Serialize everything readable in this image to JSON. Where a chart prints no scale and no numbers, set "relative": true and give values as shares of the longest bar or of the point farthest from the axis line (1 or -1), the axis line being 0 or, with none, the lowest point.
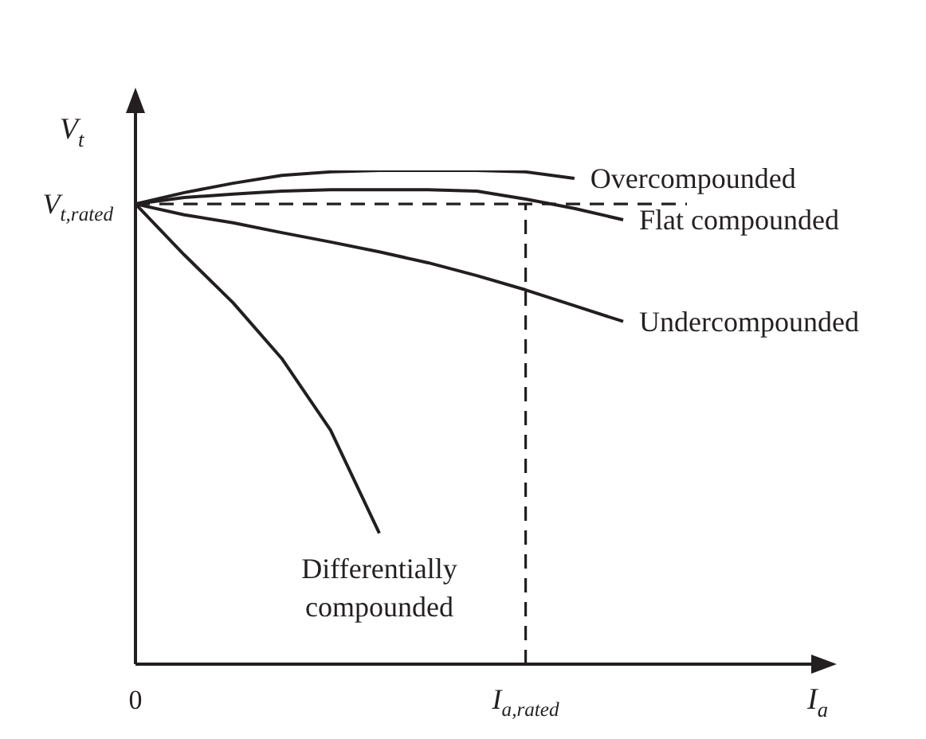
{
  "chart_data": {
    "type": "line",
    "relative": true,
    "ylabel": "V$_{t}$",
    "xlabel": "I$_{a}$",
    "categories": [
      "0",
      null,
      null,
      null,
      null,
      null,
      null,
      null,
      "I$_{a,rated}$",
      null,
      null
    ],
    "line_style": "solid",
    "marker": "none",
    "legend": false,
    "ref_lines": [
      {
        "axis": "y",
        "value": 0.932,
        "label": "V$_{t,rated}$",
        "line_style": "dashed"
      },
      {
        "axis": "x",
        "value": "I$_{a,rated}$",
        "line_style": "dashed"
      }
    ],
    "series": [
      {
        "name": "Overcompounded",
        "color": "#231f20",
        "values": [
          0.932,
          0.955,
          0.974,
          0.99,
          0.997,
          1.0,
          1.0,
          1.0,
          0.997,
          0.984,
          null
        ]
      },
      {
        "name": "Flat compounded",
        "color": "#231f20",
        "values": [
          0.932,
          0.945,
          0.952,
          0.958,
          0.961,
          0.961,
          0.961,
          0.958,
          0.942,
          0.923,
          0.9
        ]
      },
      {
        "name": "Undercompounded",
        "color": "#231f20",
        "values": [
          0.932,
          0.91,
          0.894,
          0.874,
          0.855,
          0.835,
          0.813,
          0.787,
          0.758,
          0.726,
          0.694
        ]
      },
      {
        "name": "Differentially compounded",
        "color": "#231f20",
        "values": [
          0.932,
          0.829,
          0.732,
          0.619,
          0.474,
          0.265,
          null,
          null,
          null,
          null,
          null
        ]
      }
    ]
  }
}
